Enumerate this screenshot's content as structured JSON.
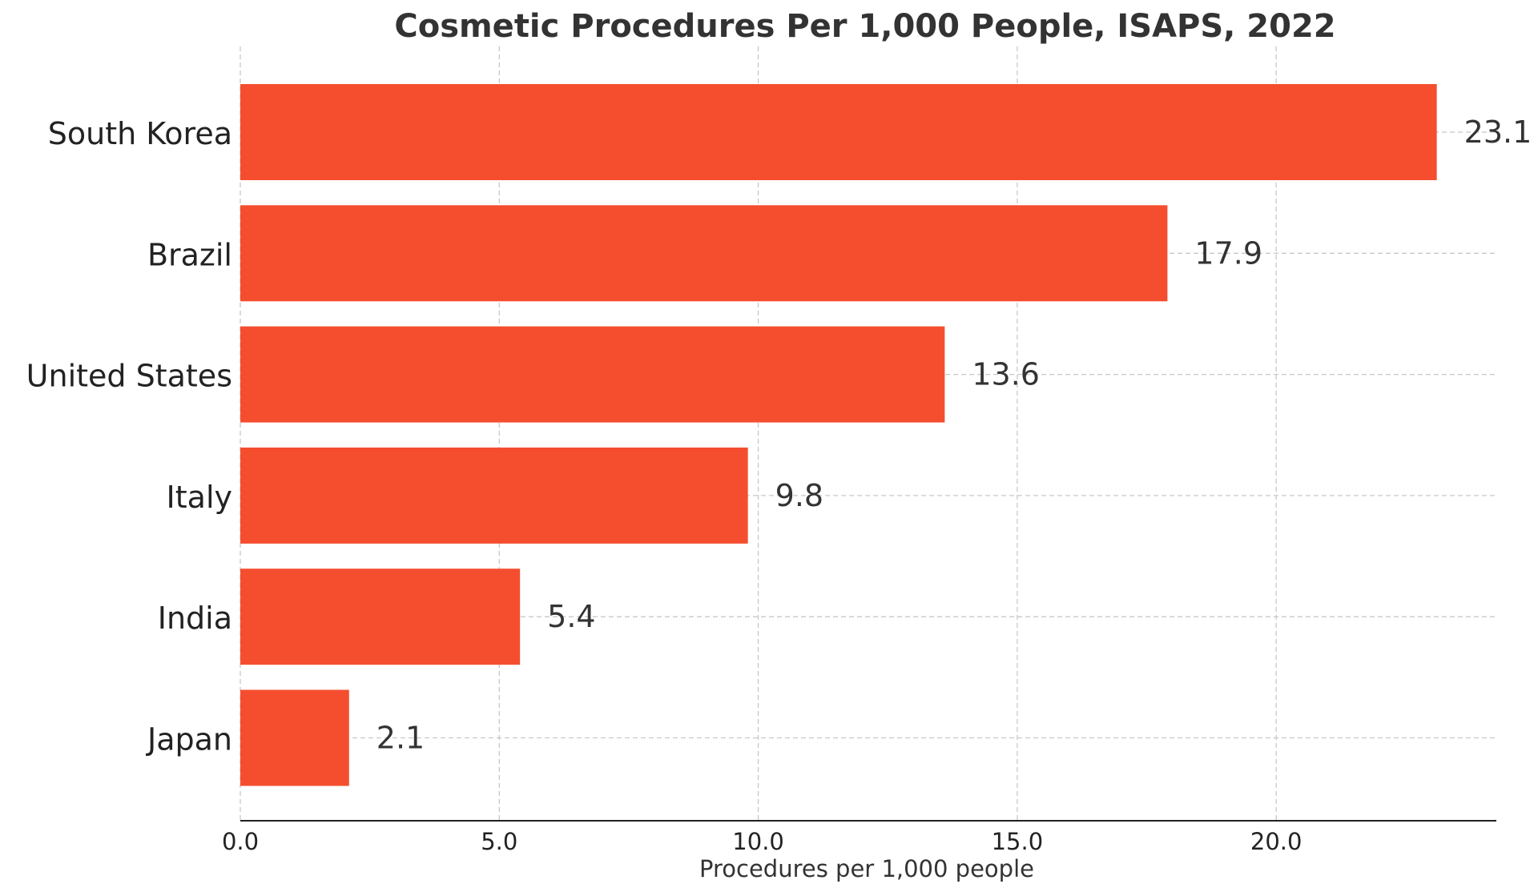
{
  "chart_data": {
    "type": "bar",
    "orientation": "horizontal",
    "title": "Cosmetic Procedures Per 1,000 People, ISAPS, 2022",
    "xlabel": "Procedures per 1,000 people",
    "ylabel": "",
    "categories": [
      "South Korea",
      "Brazil",
      "United States",
      "Italy",
      "India",
      "Japan"
    ],
    "values": [
      23.1,
      17.9,
      13.6,
      9.8,
      5.4,
      2.1
    ],
    "value_labels": [
      "23.1",
      "17.9",
      "13.6",
      "9.8",
      "5.4",
      "2.1"
    ],
    "xlim": [
      0,
      24.25
    ],
    "xticks": [
      0,
      5,
      10,
      15,
      20
    ],
    "xtick_labels": [
      "0.0",
      "5.0",
      "10.0",
      "15.0",
      "20.0"
    ],
    "grid": true,
    "legend": "none",
    "bar_color": "#f44e2f"
  }
}
